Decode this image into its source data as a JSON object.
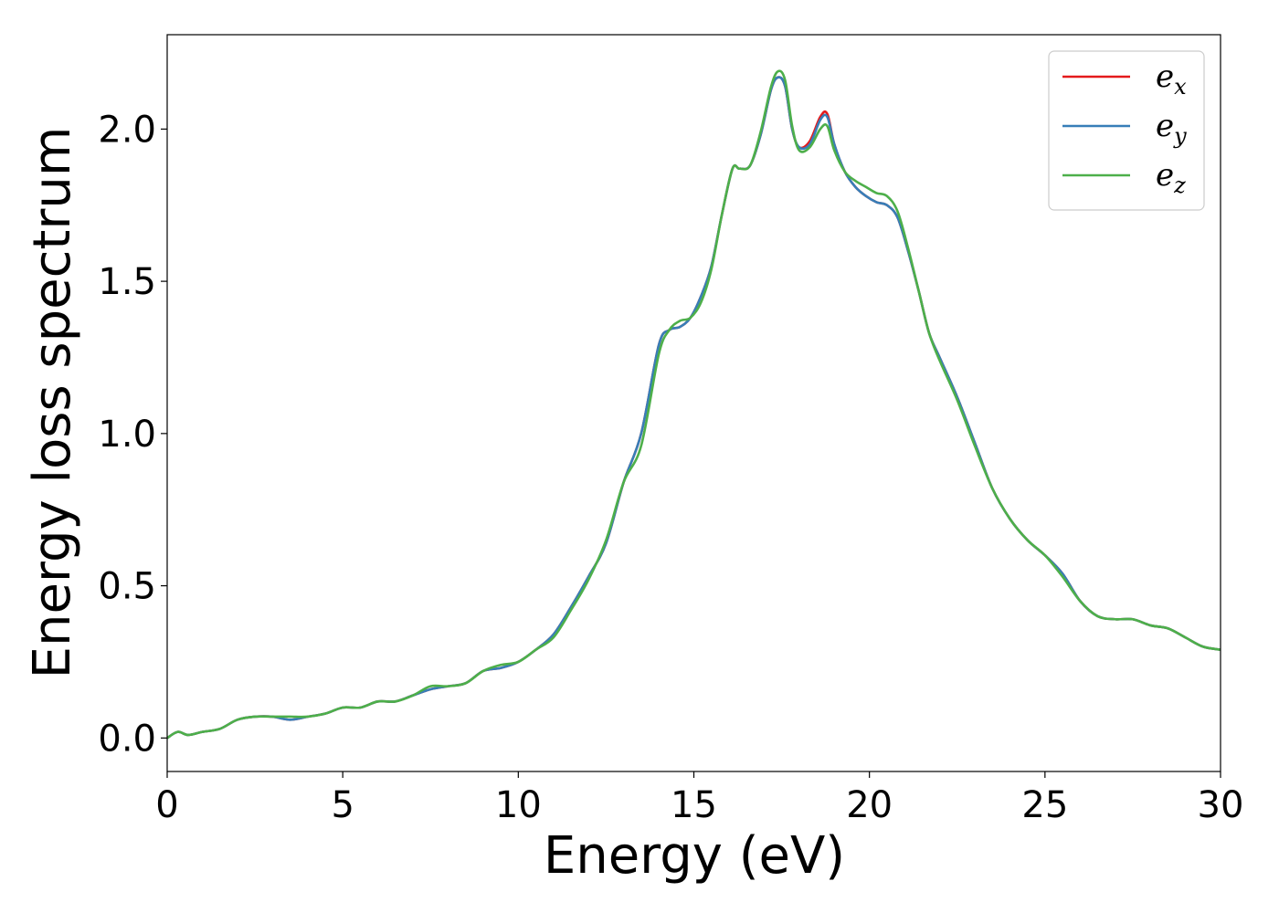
{
  "chart_data": {
    "type": "line",
    "title": "",
    "xlabel": "Energy (eV)",
    "ylabel": "Energy loss spectrum",
    "xlim": [
      0,
      30
    ],
    "ylim": [
      -0.11,
      2.31
    ],
    "xticks": [
      0,
      5,
      10,
      15,
      20,
      25,
      30
    ],
    "xtick_labels": [
      "0",
      "5",
      "10",
      "15",
      "20",
      "25",
      "30"
    ],
    "yticks": [
      0.0,
      0.5,
      1.0,
      1.5,
      2.0
    ],
    "ytick_labels": [
      "0.0",
      "0.5",
      "1.0",
      "1.5",
      "2.0"
    ],
    "grid": false,
    "legend_position": "top-right",
    "x": [
      0,
      0.3,
      0.6,
      1.0,
      1.5,
      2.0,
      2.5,
      3.0,
      3.5,
      4.0,
      4.5,
      5.0,
      5.5,
      6.0,
      6.5,
      7.0,
      7.5,
      8.0,
      8.5,
      9.0,
      9.5,
      10.0,
      10.5,
      11.0,
      11.5,
      12.0,
      12.5,
      13.0,
      13.5,
      14.0,
      14.3,
      14.6,
      14.9,
      15.2,
      15.5,
      15.8,
      16.1,
      16.3,
      16.6,
      16.9,
      17.2,
      17.4,
      17.6,
      17.8,
      18.0,
      18.3,
      18.6,
      18.8,
      19.0,
      19.3,
      19.6,
      19.9,
      20.2,
      20.5,
      20.8,
      21.1,
      21.4,
      21.7,
      22.0,
      22.5,
      23.0,
      23.5,
      24.0,
      24.5,
      25.0,
      25.5,
      26.0,
      26.5,
      27.0,
      27.5,
      28.0,
      28.5,
      29.0,
      29.5,
      30.0
    ],
    "series": [
      {
        "name": "e_x",
        "label_base": "e",
        "label_sub": "x",
        "color": "#e41a1c",
        "values": [
          0.0,
          0.02,
          0.01,
          0.02,
          0.03,
          0.06,
          0.07,
          0.07,
          0.06,
          0.07,
          0.08,
          0.1,
          0.1,
          0.12,
          0.12,
          0.14,
          0.16,
          0.17,
          0.18,
          0.22,
          0.23,
          0.25,
          0.29,
          0.34,
          0.43,
          0.53,
          0.64,
          0.84,
          1.0,
          1.29,
          1.34,
          1.35,
          1.38,
          1.45,
          1.55,
          1.72,
          1.87,
          1.87,
          1.88,
          1.98,
          2.13,
          2.17,
          2.14,
          2.0,
          1.94,
          1.96,
          2.04,
          2.05,
          1.95,
          1.86,
          1.81,
          1.78,
          1.76,
          1.75,
          1.71,
          1.6,
          1.47,
          1.33,
          1.25,
          1.12,
          0.97,
          0.82,
          0.72,
          0.65,
          0.6,
          0.54,
          0.45,
          0.4,
          0.39,
          0.39,
          0.37,
          0.36,
          0.33,
          0.3,
          0.29
        ]
      },
      {
        "name": "e_y",
        "label_base": "e",
        "label_sub": "y",
        "color": "#377eb8",
        "values": [
          0.0,
          0.02,
          0.01,
          0.02,
          0.03,
          0.06,
          0.07,
          0.07,
          0.06,
          0.07,
          0.08,
          0.1,
          0.1,
          0.12,
          0.12,
          0.14,
          0.16,
          0.17,
          0.18,
          0.22,
          0.23,
          0.25,
          0.29,
          0.34,
          0.43,
          0.53,
          0.64,
          0.84,
          1.0,
          1.29,
          1.34,
          1.35,
          1.38,
          1.45,
          1.55,
          1.72,
          1.87,
          1.87,
          1.88,
          1.98,
          2.13,
          2.17,
          2.14,
          2.0,
          1.94,
          1.95,
          2.03,
          2.04,
          1.95,
          1.86,
          1.81,
          1.78,
          1.76,
          1.75,
          1.71,
          1.6,
          1.47,
          1.33,
          1.25,
          1.12,
          0.97,
          0.82,
          0.72,
          0.65,
          0.6,
          0.54,
          0.45,
          0.4,
          0.39,
          0.39,
          0.37,
          0.36,
          0.33,
          0.3,
          0.29
        ]
      },
      {
        "name": "e_z",
        "label_base": "e",
        "label_sub": "z",
        "color": "#4daf4a",
        "values": [
          0.0,
          0.02,
          0.01,
          0.02,
          0.03,
          0.06,
          0.07,
          0.07,
          0.07,
          0.07,
          0.08,
          0.1,
          0.1,
          0.12,
          0.12,
          0.14,
          0.17,
          0.17,
          0.18,
          0.22,
          0.24,
          0.25,
          0.29,
          0.33,
          0.42,
          0.52,
          0.65,
          0.84,
          0.96,
          1.26,
          1.34,
          1.37,
          1.38,
          1.43,
          1.54,
          1.72,
          1.87,
          1.87,
          1.88,
          1.99,
          2.14,
          2.19,
          2.16,
          2.01,
          1.93,
          1.94,
          2.0,
          2.01,
          1.93,
          1.86,
          1.83,
          1.81,
          1.79,
          1.78,
          1.73,
          1.61,
          1.47,
          1.33,
          1.24,
          1.11,
          0.96,
          0.82,
          0.72,
          0.65,
          0.6,
          0.53,
          0.45,
          0.4,
          0.39,
          0.39,
          0.37,
          0.36,
          0.33,
          0.3,
          0.29
        ]
      }
    ]
  }
}
